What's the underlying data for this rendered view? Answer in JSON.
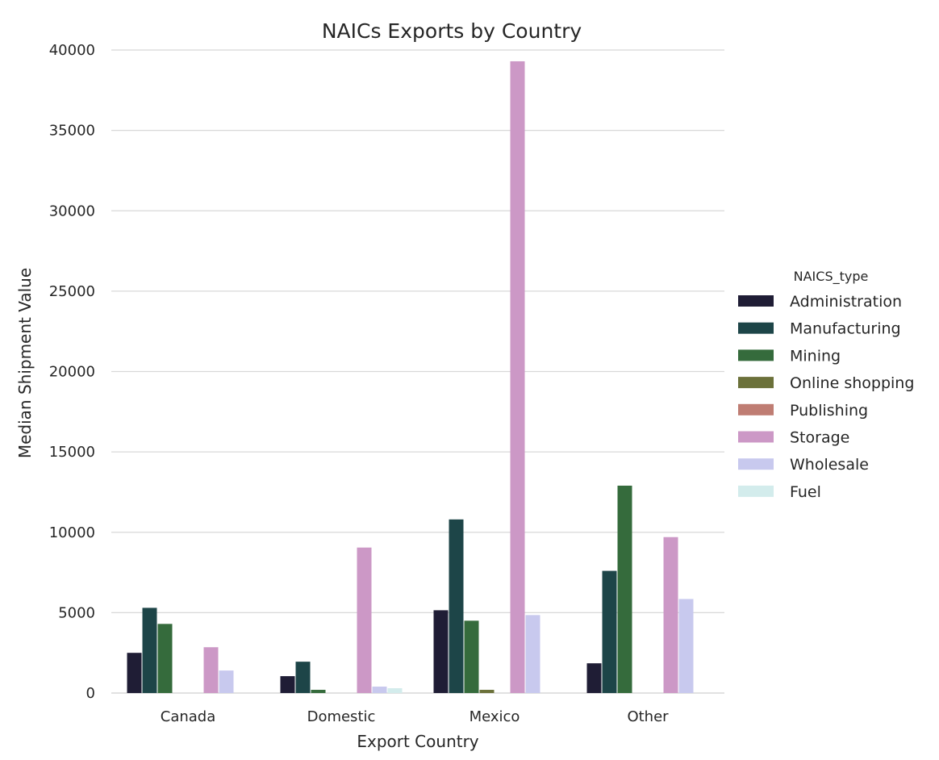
{
  "chart_data": {
    "type": "bar",
    "title": "NAICs Exports by Country",
    "xlabel": "Export Country",
    "ylabel": "Median Shipment Value",
    "categories": [
      "Canada",
      "Domestic",
      "Mexico",
      "Other"
    ],
    "ylim": [
      0,
      40000
    ],
    "yticks": [
      0,
      5000,
      10000,
      15000,
      20000,
      25000,
      30000,
      35000,
      40000
    ],
    "grid": "horizontal",
    "legend": {
      "title": "NAICS_type",
      "placement": "right"
    },
    "series": [
      {
        "name": "Administration",
        "color": "#1f1d35",
        "values": [
          2500,
          1050,
          5150,
          1850
        ]
      },
      {
        "name": "Manufacturing",
        "color": "#1d4548",
        "values": [
          5300,
          1950,
          10800,
          7600
        ]
      },
      {
        "name": "Mining",
        "color": "#356b3c",
        "values": [
          4300,
          200,
          4500,
          12900
        ]
      },
      {
        "name": "Online shopping",
        "color": "#6b713a",
        "values": [
          0,
          0,
          200,
          0
        ]
      },
      {
        "name": "Publishing",
        "color": "#bf7d73",
        "values": [
          0,
          0,
          0,
          0
        ]
      },
      {
        "name": "Storage",
        "color": "#cc98c6",
        "values": [
          2850,
          9050,
          39300,
          9700
        ]
      },
      {
        "name": "Wholesale",
        "color": "#c8c9ee",
        "values": [
          1400,
          400,
          4850,
          5850
        ]
      },
      {
        "name": "Fuel",
        "color": "#d3ecec",
        "values": [
          0,
          300,
          0,
          0
        ]
      }
    ]
  }
}
